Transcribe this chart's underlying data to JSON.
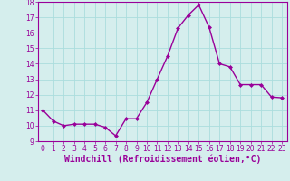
{
  "x": [
    0,
    1,
    2,
    3,
    4,
    5,
    6,
    7,
    8,
    9,
    10,
    11,
    12,
    13,
    14,
    15,
    16,
    17,
    18,
    19,
    20,
    21,
    22,
    23
  ],
  "y": [
    11.0,
    10.3,
    10.0,
    10.1,
    10.1,
    10.1,
    9.9,
    9.35,
    10.45,
    10.45,
    11.5,
    13.0,
    14.5,
    16.3,
    17.15,
    17.8,
    16.35,
    14.0,
    13.8,
    12.65,
    12.65,
    12.65,
    11.85,
    11.8
  ],
  "line_color": "#990099",
  "marker": "D",
  "marker_size": 2.0,
  "background_color": "#d5eeed",
  "grid_color": "#aadddd",
  "xlabel": "Windchill (Refroidissement éolien,°C)",
  "ylim": [
    9,
    18
  ],
  "xlim": [
    -0.5,
    23.5
  ],
  "yticks": [
    9,
    10,
    11,
    12,
    13,
    14,
    15,
    16,
    17,
    18
  ],
  "xticks": [
    0,
    1,
    2,
    3,
    4,
    5,
    6,
    7,
    8,
    9,
    10,
    11,
    12,
    13,
    14,
    15,
    16,
    17,
    18,
    19,
    20,
    21,
    22,
    23
  ],
  "tick_label_fontsize": 5.5,
  "xlabel_fontsize": 7.0,
  "linewidth": 1.0
}
